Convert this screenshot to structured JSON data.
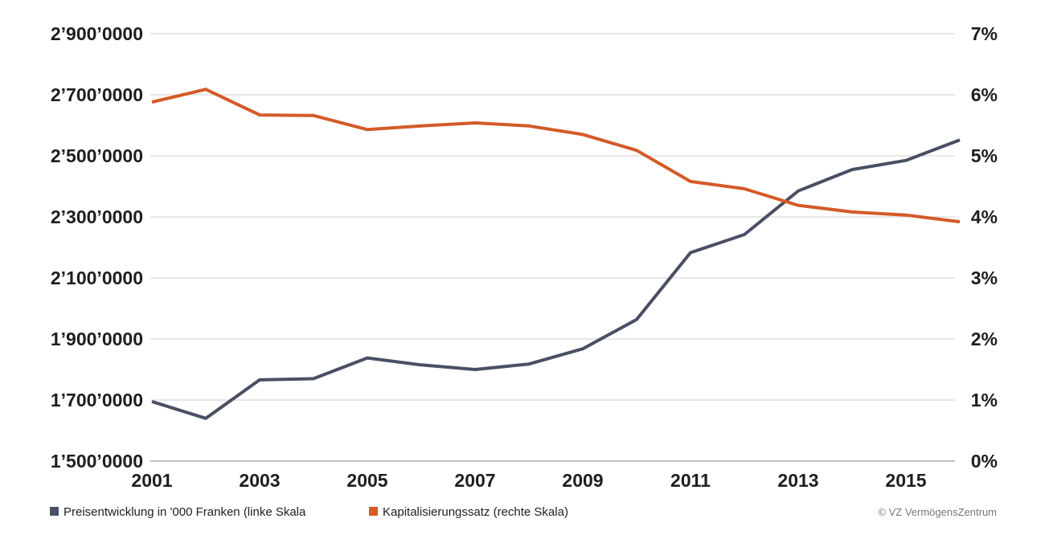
{
  "chart_data": {
    "type": "line",
    "x": [
      2001,
      2002,
      2003,
      2004,
      2005,
      2006,
      2007,
      2008,
      2009,
      2010,
      2011,
      2012,
      2013,
      2014,
      2015,
      2016
    ],
    "xticks": [
      "2001",
      "2003",
      "2005",
      "2007",
      "2009",
      "2011",
      "2013",
      "2015"
    ],
    "xlim": [
      2001,
      2016
    ],
    "y_left": {
      "lim": [
        1500,
        2900
      ],
      "ticks": [
        1500,
        1700,
        1900,
        2100,
        2300,
        2500,
        2700,
        2900
      ],
      "tick_labels": [
        "1’500’0000",
        "1’700’0000",
        "1’900’0000",
        "2’100’0000",
        "2’300’0000",
        "2’500’0000",
        "2’700’0000",
        "2’900’0000"
      ]
    },
    "y_right": {
      "lim": [
        0,
        7
      ],
      "ticks": [
        0,
        1,
        2,
        3,
        4,
        5,
        6,
        7
      ],
      "tick_labels": [
        "0%",
        "1%",
        "2%",
        "3%",
        "4%",
        "5%",
        "6%",
        "7%"
      ]
    },
    "series": [
      {
        "name": "Preisentwicklung in '000 Franken (linke Skala",
        "axis": "left",
        "color": "#4a4f63",
        "values": [
          1695,
          1640,
          1766,
          1770,
          1838,
          1815,
          1800,
          1818,
          1868,
          1964,
          2183,
          2242,
          2385,
          2455,
          2485,
          2552
        ]
      },
      {
        "name": "Kapitalisierungssatz (rechte Skala)",
        "axis": "right",
        "color": "#d45a28",
        "values": [
          5.88,
          6.09,
          5.67,
          5.66,
          5.43,
          5.49,
          5.54,
          5.49,
          5.35,
          5.09,
          4.58,
          4.46,
          4.19,
          4.08,
          4.03,
          3.92
        ]
      }
    ],
    "grid": true,
    "legend_position": "bottom-left",
    "credit": "© VZ VermögensZentrum"
  }
}
